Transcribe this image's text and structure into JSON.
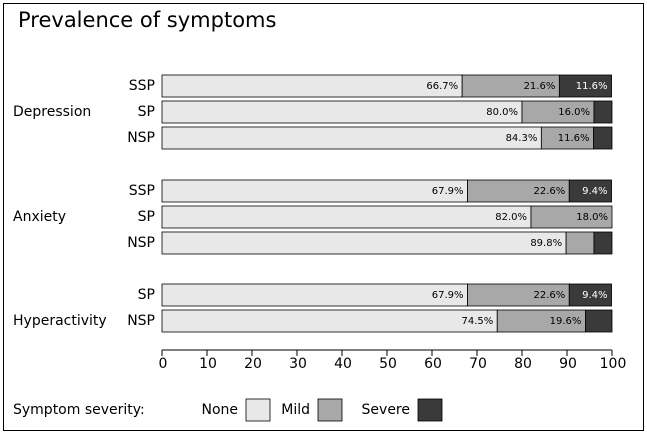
{
  "chart_data": {
    "type": "bar",
    "orientation": "horizontal",
    "stacked": true,
    "title": "Prevalence of symptoms",
    "groups": [
      {
        "name": "Depression",
        "categories": [
          "SSP",
          "SP",
          "NSP"
        ]
      },
      {
        "name": "Anxiety",
        "categories": [
          "SSP",
          "SP",
          "NSP"
        ]
      },
      {
        "name": "Hyperactivity",
        "categories": [
          "SP",
          "NSP"
        ]
      }
    ],
    "series": [
      {
        "name": "None",
        "color": "#e8e8e8",
        "label_color": "#000000",
        "values": [
          66.7,
          80.0,
          84.3,
          67.9,
          82.0,
          89.8,
          67.9,
          74.5
        ],
        "value_labels": [
          "66.7%",
          "80.0%",
          "84.3%",
          "67.9%",
          "82.0%",
          "89.8%",
          "67.9%",
          "74.5%"
        ]
      },
      {
        "name": "Mild",
        "color": "#a8a8a8",
        "label_color": "#000000",
        "values": [
          21.6,
          16.0,
          11.6,
          22.6,
          18.0,
          6.2,
          22.6,
          19.6
        ],
        "value_labels": [
          "21.6%",
          "16.0%",
          "11.6%",
          "22.6%",
          "18.0%",
          null,
          "22.6%",
          "19.6%"
        ]
      },
      {
        "name": "Severe",
        "color": "#3a3a3a",
        "label_color": "#ffffff",
        "values": [
          11.6,
          4.0,
          4.1,
          9.4,
          0,
          4.0,
          9.4,
          5.9
        ],
        "value_labels": [
          "11.6%",
          null,
          null,
          "9.4%",
          null,
          null,
          "9.4%",
          null
        ]
      }
    ],
    "xlim": [
      0,
      100
    ],
    "xticks": [
      0,
      10,
      20,
      30,
      40,
      50,
      60,
      70,
      80,
      90,
      100
    ],
    "legend_title": "Symptom severity:"
  }
}
